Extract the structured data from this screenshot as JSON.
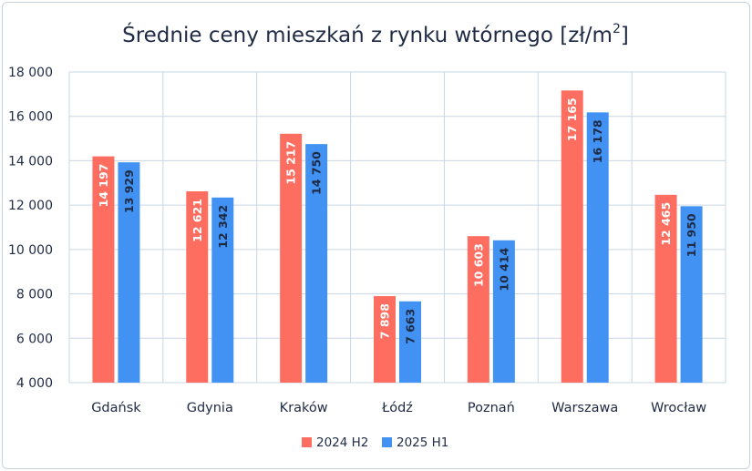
{
  "chart_data": {
    "type": "bar",
    "title_main": "Średnie ceny mieszkań z rynku wtórnego [zł/m",
    "title_sup": "2",
    "title_end": "]",
    "categories": [
      "Gdańsk",
      "Gdynia",
      "Kraków",
      "Łódź",
      "Poznań",
      "Warszawa",
      "Wrocław"
    ],
    "series": [
      {
        "name": "2024 H2",
        "color": "#fd6e60",
        "label_color": "#ffffff",
        "values": [
          14197,
          12621,
          15217,
          7898,
          10603,
          17165,
          12465
        ],
        "labels": [
          "14 197",
          "12 621",
          "15 217",
          "7 898",
          "10 603",
          "17 165",
          "12 465"
        ]
      },
      {
        "name": "2025 H1",
        "color": "#4192f2",
        "label_color": "#1f2a44",
        "values": [
          13929,
          12342,
          14750,
          7663,
          10414,
          16178,
          11950
        ],
        "labels": [
          "13 929",
          "12 342",
          "14 750",
          "7 663",
          "10 414",
          "16 178",
          "11 950"
        ]
      }
    ],
    "ylim": [
      4000,
      18000
    ],
    "yticks": [
      4000,
      6000,
      8000,
      10000,
      12000,
      14000,
      16000,
      18000
    ],
    "ytick_labels": [
      "4 000",
      "6 000",
      "8 000",
      "10 000",
      "12 000",
      "14 000",
      "16 000",
      "18 000"
    ],
    "grid": true,
    "legend_position": "bottom"
  }
}
